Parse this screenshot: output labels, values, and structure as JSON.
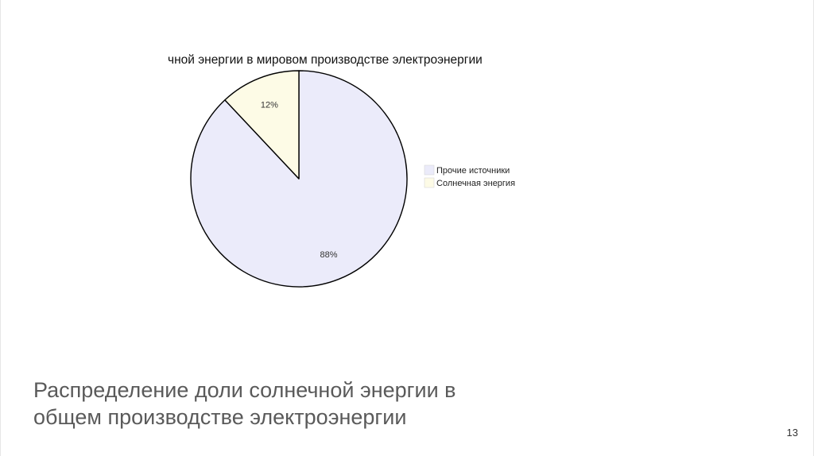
{
  "slide": {
    "caption_line1": "Распределение доли солнечной энергии в",
    "caption_line2": "общем производстве электроэнергии",
    "page_number": "13"
  },
  "chart_data": {
    "type": "pie",
    "title": "чной энергии в мировом производстве электроэнергии",
    "categories": [
      "Прочие источники",
      "Солнечная энергия"
    ],
    "values": [
      88,
      12
    ],
    "data_labels": [
      "88%",
      "12%"
    ],
    "colors": [
      "#ebebfa",
      "#fdfbe6"
    ],
    "edge_color": "#000000",
    "legend_position": "right"
  }
}
